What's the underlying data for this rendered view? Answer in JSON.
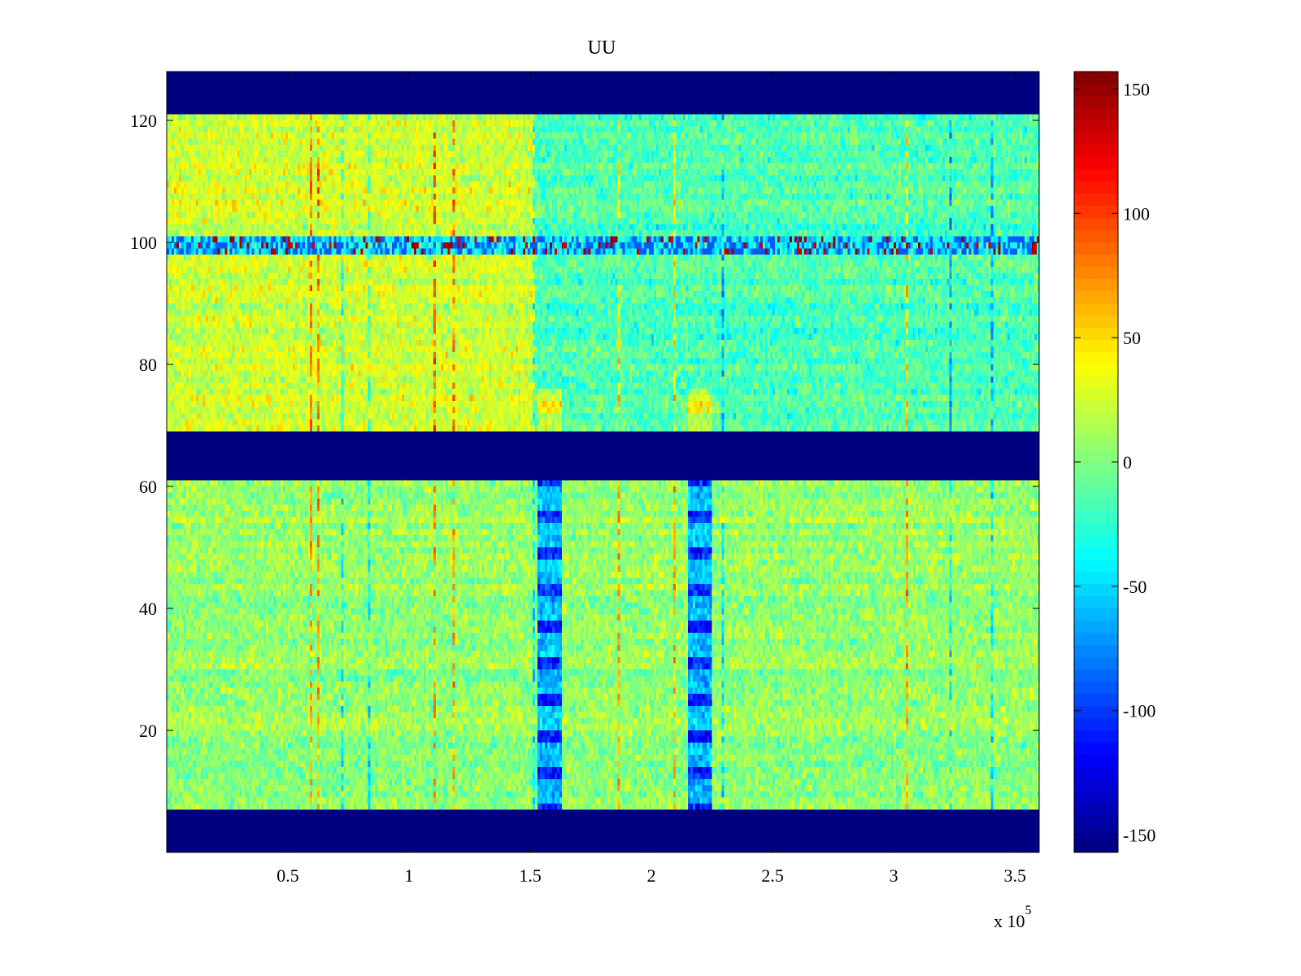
{
  "chart_data": {
    "type": "heatmap",
    "title": "UU",
    "xlabel": "",
    "ylabel": "",
    "x_exponent_label": "x 10",
    "x_exponent_power": "5",
    "xlim": [
      0,
      3.6
    ],
    "ylim": [
      0,
      128
    ],
    "x_ticks": [
      {
        "value": 0.5,
        "label": "0.5"
      },
      {
        "value": 1,
        "label": "1"
      },
      {
        "value": 1.5,
        "label": "1.5"
      },
      {
        "value": 2,
        "label": "2"
      },
      {
        "value": 2.5,
        "label": "2.5"
      },
      {
        "value": 3,
        "label": "3"
      },
      {
        "value": 3.5,
        "label": "3.5"
      }
    ],
    "y_ticks": [
      {
        "value": 20,
        "label": "20"
      },
      {
        "value": 40,
        "label": "40"
      },
      {
        "value": 60,
        "label": "60"
      },
      {
        "value": 80,
        "label": "80"
      },
      {
        "value": 100,
        "label": "100"
      },
      {
        "value": 120,
        "label": "120"
      }
    ],
    "colorbar": {
      "colormap": "jet",
      "clim": [
        -157,
        157
      ],
      "ticks": [
        {
          "value": 150,
          "label": "150"
        },
        {
          "value": 100,
          "label": "100"
        },
        {
          "value": 50,
          "label": "50"
        },
        {
          "value": 0,
          "label": "0"
        },
        {
          "value": -50,
          "label": "-50"
        },
        {
          "value": -100,
          "label": "-100"
        },
        {
          "value": -150,
          "label": "-150"
        }
      ]
    },
    "bands": [
      {
        "y_range": [
          121,
          128
        ],
        "value": -157,
        "description": "empty"
      },
      {
        "y_range": [
          98,
          101
        ],
        "value": -40,
        "description": "striped, with red bursts"
      },
      {
        "y_range": [
          61,
          69
        ],
        "value": -157,
        "description": "empty"
      },
      {
        "y_range": [
          0,
          7
        ],
        "value": -157,
        "description": "empty"
      }
    ],
    "regions": [
      {
        "x_range": [
          0,
          1.52
        ],
        "y_range": [
          69,
          121
        ],
        "mean": 25
      },
      {
        "x_range": [
          1.52,
          3.6
        ],
        "y_range": [
          69,
          121
        ],
        "mean": -15
      },
      {
        "x_range": [
          0,
          3.6
        ],
        "y_range": [
          7,
          61
        ],
        "mean": 5
      }
    ],
    "features": [
      {
        "x_center": 1.58,
        "y_range": [
          7,
          61
        ],
        "mean": -110,
        "description": "blue vertical striped column"
      },
      {
        "x_center": 2.2,
        "y_range": [
          7,
          61
        ],
        "mean": -110,
        "description": "blue vertical striped column"
      },
      {
        "x_center": 1.58,
        "y_range": [
          69,
          76
        ],
        "mean": 40,
        "description": "warm patch"
      },
      {
        "x_center": 2.2,
        "y_range": [
          69,
          76
        ],
        "mean": 40,
        "description": "warm patch"
      }
    ],
    "grid": false,
    "colorbar_position": "right"
  }
}
